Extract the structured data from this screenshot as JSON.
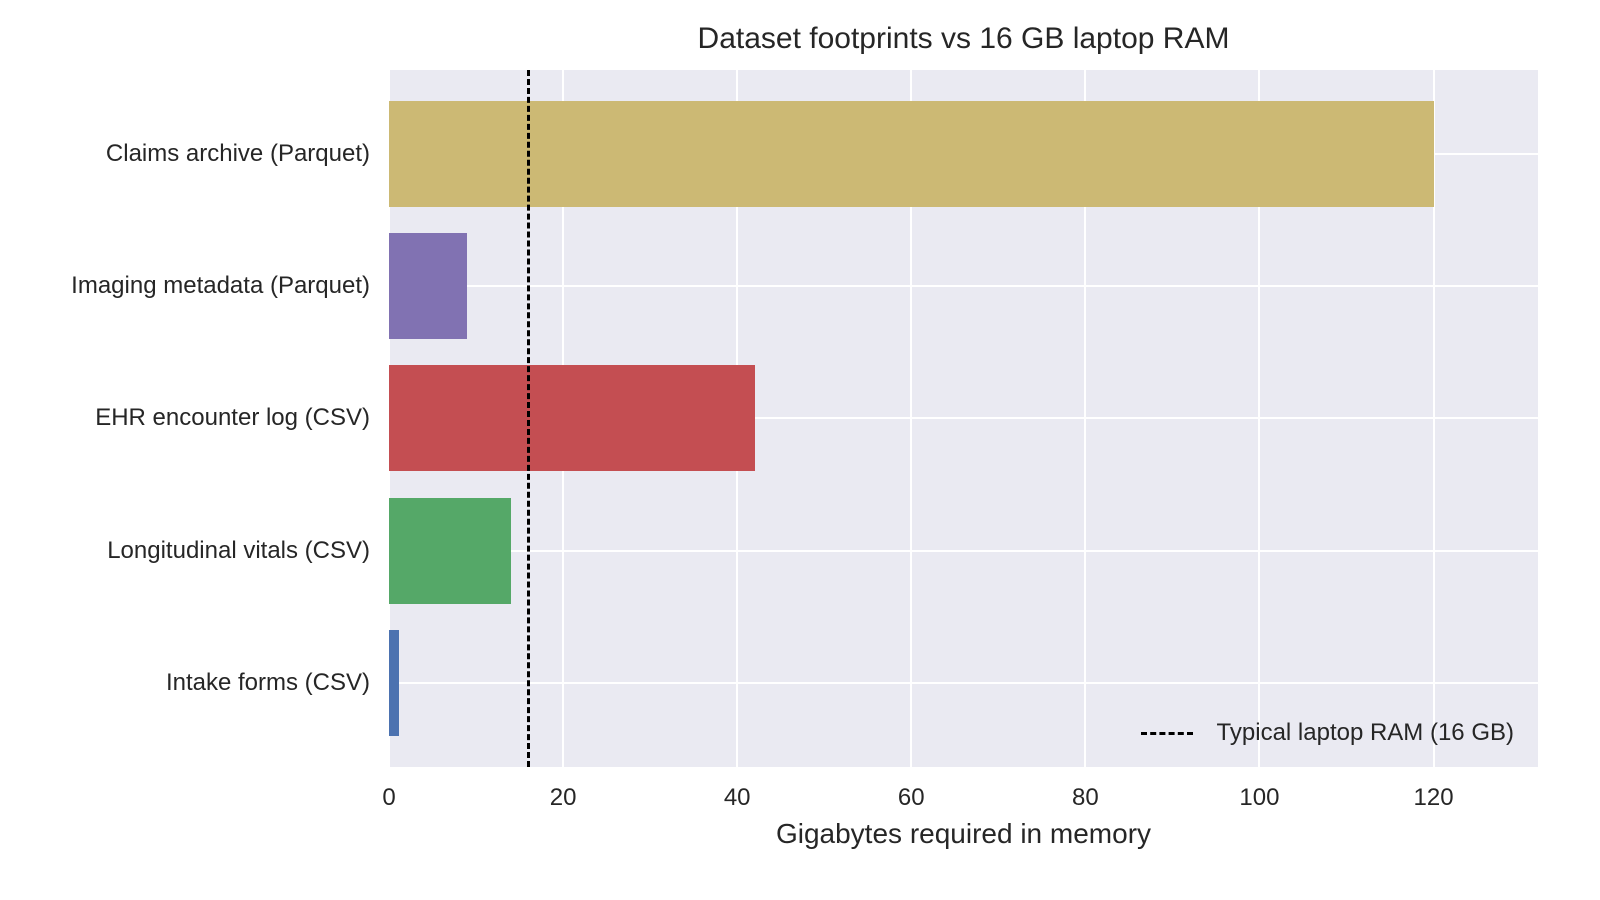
{
  "chart_data": {
    "type": "bar",
    "orientation": "horizontal",
    "title": "Dataset footprints vs 16 GB laptop RAM",
    "xlabel": "Gigabytes required in memory",
    "ylabel": "",
    "xlim": [
      0,
      132
    ],
    "xticks": [
      0,
      20,
      40,
      60,
      80,
      100,
      120
    ],
    "grid": true,
    "categories": [
      "Claims archive (Parquet)",
      "Imaging metadata (Parquet)",
      "EHR encounter log (CSV)",
      "Longitudinal vitals (CSV)",
      "Intake forms (CSV)"
    ],
    "values": [
      120,
      9,
      42,
      14,
      1.2
    ],
    "colors": [
      "#ccb974",
      "#8172b2",
      "#c44e52",
      "#55a868",
      "#4c72b0"
    ],
    "reference_line": {
      "x": 16,
      "style": "dashed",
      "color": "#000000",
      "label": "Typical laptop RAM (16 GB)"
    },
    "legend": {
      "position": "lower right",
      "entries": [
        "Typical laptop RAM (16 GB)"
      ]
    }
  }
}
